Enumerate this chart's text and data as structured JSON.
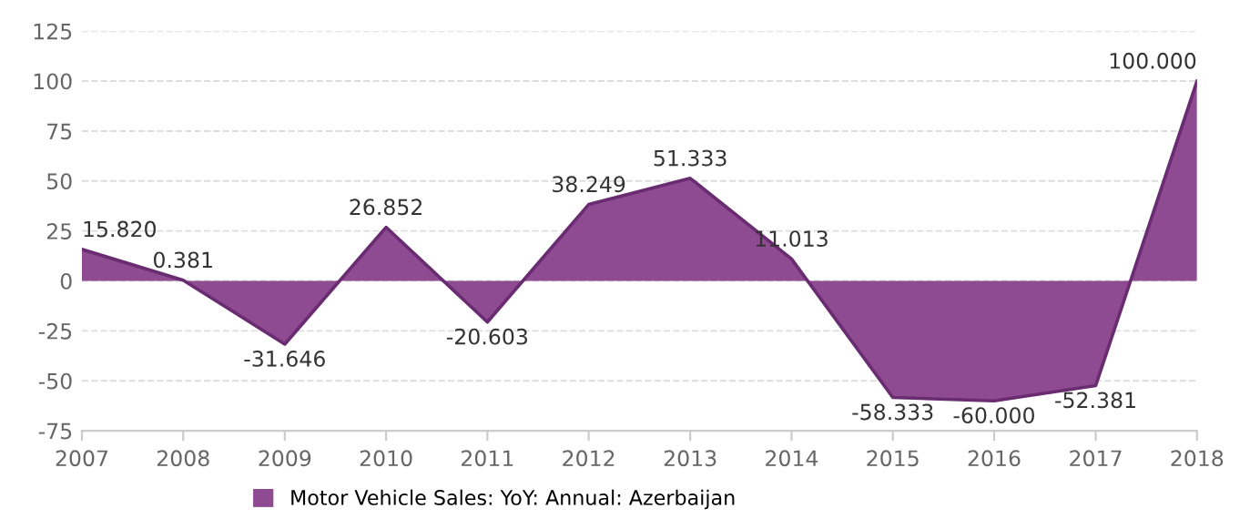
{
  "chart_data": {
    "type": "area",
    "x": [
      "2007",
      "2008",
      "2009",
      "2010",
      "2011",
      "2012",
      "2013",
      "2014",
      "2015",
      "2016",
      "2017",
      "2018"
    ],
    "series": [
      {
        "name": "Motor Vehicle Sales: YoY: Annual: Azerbaijan",
        "color": "#8e4b91",
        "values": [
          15.82,
          0.381,
          -31.646,
          26.852,
          -20.603,
          38.249,
          51.333,
          11.013,
          -58.333,
          -60.0,
          -52.381,
          100.0
        ],
        "value_labels": [
          "15.820",
          "0.381",
          "-31.646",
          "26.852",
          "-20.603",
          "38.249",
          "51.333",
          "11.013",
          "-58.333",
          "-60.000",
          "-52.381",
          "100.000"
        ]
      }
    ],
    "xlim": [
      "2007",
      "2018"
    ],
    "xticks": [
      {
        "value": "2007",
        "label": "2007"
      },
      {
        "value": "2008",
        "label": "2008"
      },
      {
        "value": "2009",
        "label": "2009"
      },
      {
        "value": "2010",
        "label": "2010"
      },
      {
        "value": "2011",
        "label": "2011"
      },
      {
        "value": "2012",
        "label": "2012"
      },
      {
        "value": "2013",
        "label": "2013"
      },
      {
        "value": "2014",
        "label": "2014"
      },
      {
        "value": "2015",
        "label": "2015"
      },
      {
        "value": "2016",
        "label": "2016"
      },
      {
        "value": "2017",
        "label": "2017"
      },
      {
        "value": "2018",
        "label": "2018"
      }
    ],
    "ylim": [
      -75,
      125
    ],
    "yticks": [
      -75,
      -50,
      -25,
      0,
      25,
      50,
      75,
      100,
      125
    ],
    "grid": "y",
    "legend": "bottom",
    "marker": "none",
    "line_style": "solid"
  }
}
